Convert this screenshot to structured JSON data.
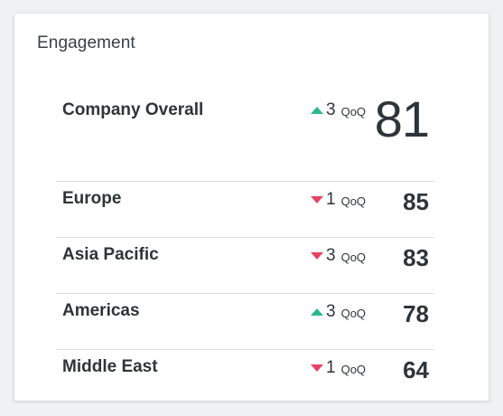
{
  "widget": {
    "title": "Engagement"
  },
  "overall": {
    "label": "Company Overall",
    "direction": "up",
    "change": "3",
    "unit": "QoQ",
    "score": "81"
  },
  "regions": [
    {
      "label": "Europe",
      "direction": "down",
      "change": "1",
      "unit": "QoQ",
      "score": "85"
    },
    {
      "label": "Asia Pacific",
      "direction": "down",
      "change": "3",
      "unit": "QoQ",
      "score": "83"
    },
    {
      "label": "Americas",
      "direction": "up",
      "change": "3",
      "unit": "QoQ",
      "score": "78"
    },
    {
      "label": "Middle East",
      "direction": "down",
      "change": "1",
      "unit": "QoQ",
      "score": "64"
    }
  ],
  "colors": {
    "up": "#2bb98a",
    "down": "#e54462"
  },
  "icons": {
    "up": "triangle-up-icon",
    "down": "triangle-down-icon"
  }
}
